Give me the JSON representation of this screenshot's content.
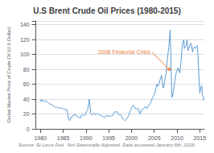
{
  "chart_data": {
    "type": "line",
    "title": "U.S Brent Crude Oil Prices (1980-2015)",
    "ylabel": "Global Market Price of Crude Oil (U.S Dollar)",
    "source": "Source: St Louis Fed.  Not Seasonally Adjusted. Data accessed January 6th, 2016.",
    "annotations": [
      {
        "text": "2008 Financial Crisis",
        "xy": [
          2008.6,
          78
        ],
        "xytext": [
          2004.5,
          103
        ],
        "color": "#ed7d31"
      }
    ],
    "color": "#5b9bd5",
    "grid": true,
    "xlim": [
      1979,
      2016
    ],
    "xticks": [
      1980,
      1985,
      1990,
      1995,
      2000,
      2005,
      2010,
      2015
    ],
    "ylim": [
      0,
      145
    ],
    "yticks": [
      0,
      20,
      40,
      60,
      80,
      100,
      120,
      140
    ],
    "x": [
      1980.0,
      1980.1,
      1980.2,
      1980.3,
      1980.5,
      1980.7,
      1980.9,
      1981.1,
      1981.3,
      1981.5,
      1981.7,
      1981.9,
      1982.0,
      1982.2,
      1982.4,
      1982.6,
      1982.8,
      1983.0,
      1983.2,
      1983.4,
      1983.6,
      1983.8,
      1984.0,
      1984.2,
      1984.4,
      1984.6,
      1984.8,
      1985.0,
      1985.2,
      1985.4,
      1985.6,
      1985.8,
      1986.0,
      1986.1,
      1986.2,
      1986.3,
      1986.4,
      1986.5,
      1986.6,
      1986.7,
      1986.8,
      1986.9,
      1987.0,
      1987.2,
      1987.4,
      1987.6,
      1987.8,
      1988.0,
      1988.2,
      1988.4,
      1988.6,
      1988.8,
      1989.0,
      1989.2,
      1989.4,
      1989.6,
      1989.8,
      1990.0,
      1990.2,
      1990.4,
      1990.6,
      1990.7,
      1990.8,
      1990.9,
      1991.0,
      1991.1,
      1991.2,
      1991.4,
      1991.6,
      1991.8,
      1992.0,
      1992.2,
      1992.4,
      1992.6,
      1992.8,
      1993.0,
      1993.2,
      1993.4,
      1993.6,
      1993.8,
      1994.0,
      1994.2,
      1994.4,
      1994.6,
      1994.8,
      1995.0,
      1995.2,
      1995.4,
      1995.6,
      1995.8,
      1996.0,
      1996.2,
      1996.4,
      1996.6,
      1996.8,
      1997.0,
      1997.2,
      1997.4,
      1997.6,
      1997.8,
      1998.0,
      1998.2,
      1998.4,
      1998.6,
      1998.8,
      1999.0,
      1999.2,
      1999.4,
      1999.6,
      1999.8,
      2000.0,
      2000.2,
      2000.4,
      2000.6,
      2000.8,
      2001.0,
      2001.2,
      2001.4,
      2001.6,
      2001.8,
      2002.0,
      2002.2,
      2002.4,
      2002.6,
      2002.8,
      2003.0,
      2003.2,
      2003.4,
      2003.6,
      2003.8,
      2004.0,
      2004.2,
      2004.4,
      2004.6,
      2004.8,
      2005.0,
      2005.2,
      2005.4,
      2005.6,
      2005.8,
      2006.0,
      2006.2,
      2006.4,
      2006.6,
      2006.8,
      2007.0,
      2007.2,
      2007.4,
      2007.6,
      2007.8,
      2008.0,
      2008.2,
      2008.4,
      2008.5,
      2008.6,
      2008.7,
      2008.8,
      2008.9,
      2009.0,
      2009.2,
      2009.4,
      2009.6,
      2009.8,
      2010.0,
      2010.2,
      2010.4,
      2010.6,
      2010.8,
      2011.0,
      2011.2,
      2011.4,
      2011.5,
      2011.6,
      2011.8,
      2012.0,
      2012.2,
      2012.4,
      2012.6,
      2012.8,
      2013.0,
      2013.2,
      2013.4,
      2013.6,
      2013.8,
      2014.0,
      2014.2,
      2014.4,
      2014.5,
      2014.6,
      2014.7,
      2014.8,
      2014.9,
      2015.0,
      2015.2,
      2015.4,
      2015.5,
      2015.6,
      2015.8,
      2015.9
    ],
    "values": [
      36.8,
      38.0,
      39.5,
      37.0,
      38.5,
      37.5,
      36.0,
      38.0,
      37.5,
      36.0,
      35.0,
      34.0,
      33.0,
      33.5,
      32.5,
      32.0,
      31.5,
      30.0,
      29.0,
      29.5,
      29.0,
      28.5,
      28.0,
      28.5,
      28.0,
      27.5,
      27.0,
      27.5,
      27.0,
      26.5,
      26.0,
      25.5,
      20.0,
      15.0,
      13.0,
      12.0,
      11.0,
      12.0,
      14.0,
      15.0,
      16.0,
      15.0,
      17.0,
      18.0,
      19.0,
      18.5,
      19.0,
      16.5,
      15.5,
      15.0,
      15.5,
      14.5,
      18.0,
      19.5,
      18.5,
      17.5,
      18.5,
      22.0,
      24.0,
      26.0,
      35.0,
      40.0,
      36.0,
      30.0,
      22.0,
      20.0,
      19.5,
      19.0,
      20.0,
      21.0,
      19.5,
      19.0,
      20.0,
      20.5,
      19.5,
      19.0,
      18.5,
      17.5,
      17.0,
      16.5,
      15.5,
      15.0,
      17.5,
      18.0,
      17.0,
      17.5,
      17.0,
      17.5,
      17.0,
      17.5,
      20.0,
      22.0,
      22.5,
      23.0,
      23.5,
      20.0,
      19.0,
      18.5,
      19.0,
      17.0,
      14.0,
      13.0,
      12.0,
      11.0,
      12.0,
      14.0,
      16.0,
      18.0,
      22.0,
      24.0,
      28.0,
      30.0,
      32.0,
      30.0,
      28.0,
      26.0,
      27.0,
      28.0,
      26.0,
      20.0,
      22.0,
      25.0,
      26.0,
      27.0,
      28.0,
      30.0,
      28.0,
      27.0,
      30.0,
      32.0,
      33.0,
      35.0,
      38.0,
      42.0,
      44.0,
      46.0,
      50.0,
      55.0,
      60.0,
      57.0,
      60.0,
      65.0,
      68.0,
      72.0,
      60.0,
      55.0,
      60.0,
      68.0,
      74.0,
      90.0,
      100.0,
      110.0,
      125.0,
      133.0,
      110.0,
      80.0,
      55.0,
      42.0,
      42.0,
      50.0,
      60.0,
      68.0,
      75.0,
      78.0,
      82.0,
      78.0,
      75.0,
      85.0,
      100.0,
      115.0,
      118.0,
      120.0,
      108.0,
      110.0,
      112.0,
      120.0,
      105.0,
      108.0,
      112.0,
      115.0,
      112.0,
      103.0,
      108.0,
      110.0,
      108.0,
      110.0,
      112.0,
      108.0,
      100.0,
      85.0,
      72.0,
      60.0,
      48.0,
      55.0,
      58.0,
      52.0,
      45.0,
      42.0,
      38.0
    ]
  }
}
